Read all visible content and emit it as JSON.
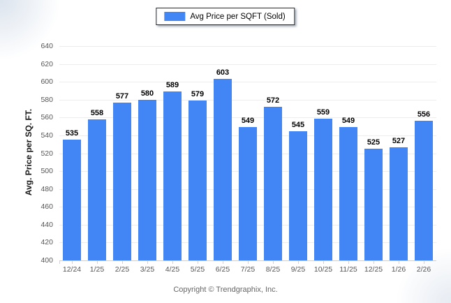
{
  "legend": {
    "label": "Avg Price per SQFT (Sold)",
    "swatch_color": "#4285f4"
  },
  "chart_data": {
    "type": "bar",
    "categories": [
      "12/24",
      "1/25",
      "2/25",
      "3/25",
      "4/25",
      "5/25",
      "6/25",
      "7/25",
      "8/25",
      "9/25",
      "10/25",
      "11/25",
      "12/25",
      "1/26",
      "2/26"
    ],
    "values": [
      535,
      558,
      577,
      580,
      589,
      579,
      603,
      549,
      572,
      545,
      559,
      549,
      525,
      527,
      556
    ],
    "title": "",
    "xlabel": "",
    "ylabel": "Avg. Price per SQ. FT.",
    "ylim": [
      400,
      640
    ],
    "ytick_step": 20,
    "grid": "horizontal",
    "legend_position": "top-center",
    "bar_color": "#4285f4",
    "gridline_color": "#ededed",
    "axis_line_color": "#cfcfcf",
    "tick_color": "#c9d3e2"
  },
  "footer": {
    "copyright": "Copyright © Trendgraphix, Inc."
  }
}
